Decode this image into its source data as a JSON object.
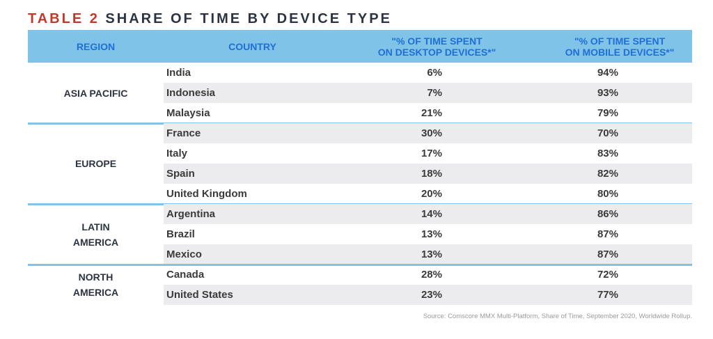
{
  "title": {
    "label": "TABLE 2",
    "text": "SHARE OF TIME BY DEVICE TYPE"
  },
  "colors": {
    "header_bg": "#7fc3e8",
    "header_text": "#1f6fd6",
    "title_accent": "#c0392b",
    "row_alt": "#ececee"
  },
  "header": {
    "region": "REGION",
    "country": "COUNTRY",
    "desktop": "\"% OF TIME SPENT\nON DESKTOP DEVICES*\"",
    "mobile": "\"% OF TIME SPENT\nON MOBILE DEVICES*\""
  },
  "groups": [
    {
      "region": "ASIA PACIFIC",
      "rows": [
        {
          "country": "India",
          "desktop": "6%",
          "mobile": "94%"
        },
        {
          "country": "Indonesia",
          "desktop": "7%",
          "mobile": "93%"
        },
        {
          "country": "Malaysia",
          "desktop": "21%",
          "mobile": "79%"
        }
      ]
    },
    {
      "region": "EUROPE",
      "rows": [
        {
          "country": "France",
          "desktop": "30%",
          "mobile": "70%"
        },
        {
          "country": "Italy",
          "desktop": "17%",
          "mobile": "83%"
        },
        {
          "country": "Spain",
          "desktop": "18%",
          "mobile": "82%"
        },
        {
          "country": "United Kingdom",
          "desktop": "20%",
          "mobile": "80%"
        }
      ]
    },
    {
      "region": "LATIN\nAMERICA",
      "rows": [
        {
          "country": "Argentina",
          "desktop": "14%",
          "mobile": "86%"
        },
        {
          "country": "Brazil",
          "desktop": "13%",
          "mobile": "87%"
        },
        {
          "country": "Mexico",
          "desktop": "13%",
          "mobile": "87%"
        }
      ]
    },
    {
      "region": "NORTH\nAMERICA",
      "rows": [
        {
          "country": "Canada",
          "desktop": "28%",
          "mobile": "72%"
        },
        {
          "country": "United States",
          "desktop": "23%",
          "mobile": "77%"
        }
      ]
    }
  ],
  "source": "Source: Comscore MMX Multi-Platform, Share of Time, September 2020, Worldwide Rollup."
}
